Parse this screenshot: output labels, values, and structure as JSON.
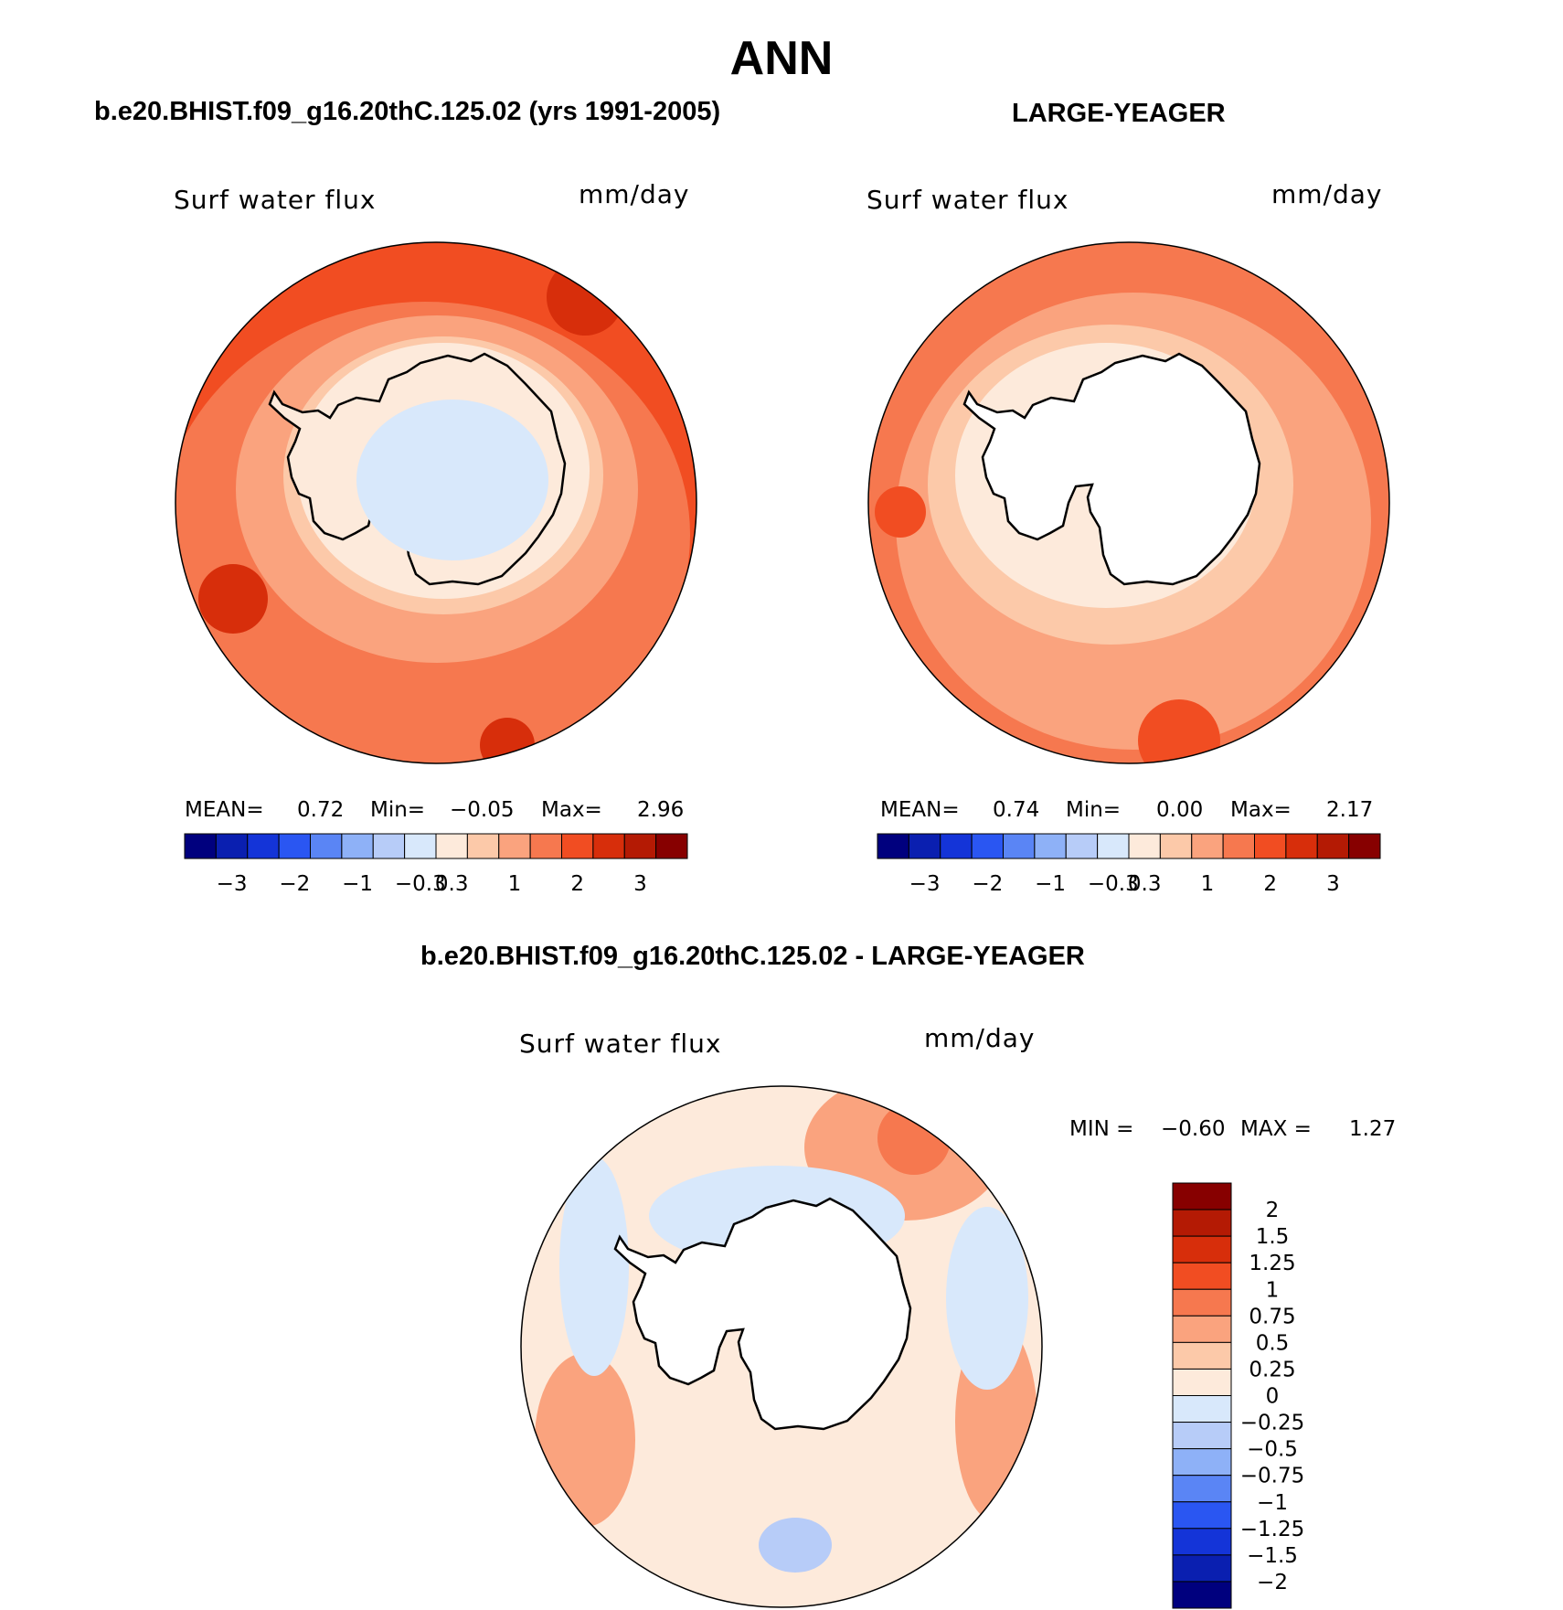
{
  "title": "ANN",
  "panels": [
    {
      "id": "model",
      "heading": "b.e20.BHIST.f09_g16.20thC.125.02 (yrs 1991-2005)",
      "variable": "Surf water flux",
      "units": "mm/day",
      "stats": {
        "mean_label": "MEAN=",
        "mean": "0.72",
        "min_label": "Min=",
        "min": "−0.05",
        "max_label": "Max=",
        "max": "2.96"
      }
    },
    {
      "id": "obs",
      "heading": "LARGE-YEAGER",
      "variable": "Surf water flux",
      "units": "mm/day",
      "stats": {
        "mean_label": "MEAN=",
        "mean": "0.74",
        "min_label": "Min=",
        "min": "0.00",
        "max_label": "Max=",
        "max": "2.17"
      }
    },
    {
      "id": "diff",
      "heading": "b.e20.BHIST.f09_g16.20thC.125.02 - LARGE-YEAGER",
      "variable": "Surf water flux",
      "units": "mm/day",
      "stats": {
        "min_label": "MIN =",
        "min": "−0.60",
        "max_label": "MAX =",
        "max": "1.27"
      }
    }
  ],
  "chart_data": [
    {
      "type": "heatmap",
      "projection": "south polar stereographic",
      "title": "b.e20.BHIST.f09_g16.20thC.125.02 (yrs 1991-2005)",
      "variable": "Surf water flux",
      "units": "mm/day",
      "mean": 0.72,
      "min": -0.05,
      "max": 2.96,
      "colorbar_ticks": [
        "−3",
        "−2",
        "−1",
        "−0.3",
        "0.3",
        "1",
        "2",
        "3"
      ],
      "colorbar_colors": [
        "#00007e",
        "#0a1fb0",
        "#1434d8",
        "#2a56f2",
        "#5a85f5",
        "#8eb1f7",
        "#b7ccf8",
        "#d8e8fb",
        "#fdeadb",
        "#fcc9a9",
        "#faa37e",
        "#f6784f",
        "#f14d22",
        "#d72e0b",
        "#b41a04",
        "#870000"
      ]
    },
    {
      "type": "heatmap",
      "projection": "south polar stereographic",
      "title": "LARGE-YEAGER",
      "variable": "Surf water flux",
      "units": "mm/day",
      "mean": 0.74,
      "min": 0.0,
      "max": 2.17,
      "colorbar_ticks": [
        "−3",
        "−2",
        "−1",
        "−0.3",
        "0.3",
        "1",
        "2",
        "3"
      ],
      "colorbar_colors": [
        "#00007e",
        "#0a1fb0",
        "#1434d8",
        "#2a56f2",
        "#5a85f5",
        "#8eb1f7",
        "#b7ccf8",
        "#d8e8fb",
        "#fdeadb",
        "#fcc9a9",
        "#faa37e",
        "#f6784f",
        "#f14d22",
        "#d72e0b",
        "#b41a04",
        "#870000"
      ]
    },
    {
      "type": "heatmap",
      "projection": "south polar stereographic",
      "title": "b.e20.BHIST.f09_g16.20thC.125.02 - LARGE-YEAGER",
      "variable": "Surf water flux",
      "units": "mm/day",
      "min": -0.6,
      "max": 1.27,
      "colorbar_ticks": [
        "2",
        "1.5",
        "1.25",
        "1",
        "0.75",
        "0.5",
        "0.25",
        "0",
        "−0.25",
        "−0.5",
        "−0.75",
        "−1",
        "−1.25",
        "−1.5",
        "−2"
      ],
      "colorbar_colors": [
        "#870000",
        "#b41a04",
        "#d72e0b",
        "#f14d22",
        "#f6784f",
        "#faa37e",
        "#fcc9a9",
        "#fdeadb",
        "#d8e8fb",
        "#b7ccf8",
        "#8eb1f7",
        "#5a85f5",
        "#2a56f2",
        "#1434d8",
        "#0a1fb0",
        "#00007e"
      ]
    }
  ]
}
